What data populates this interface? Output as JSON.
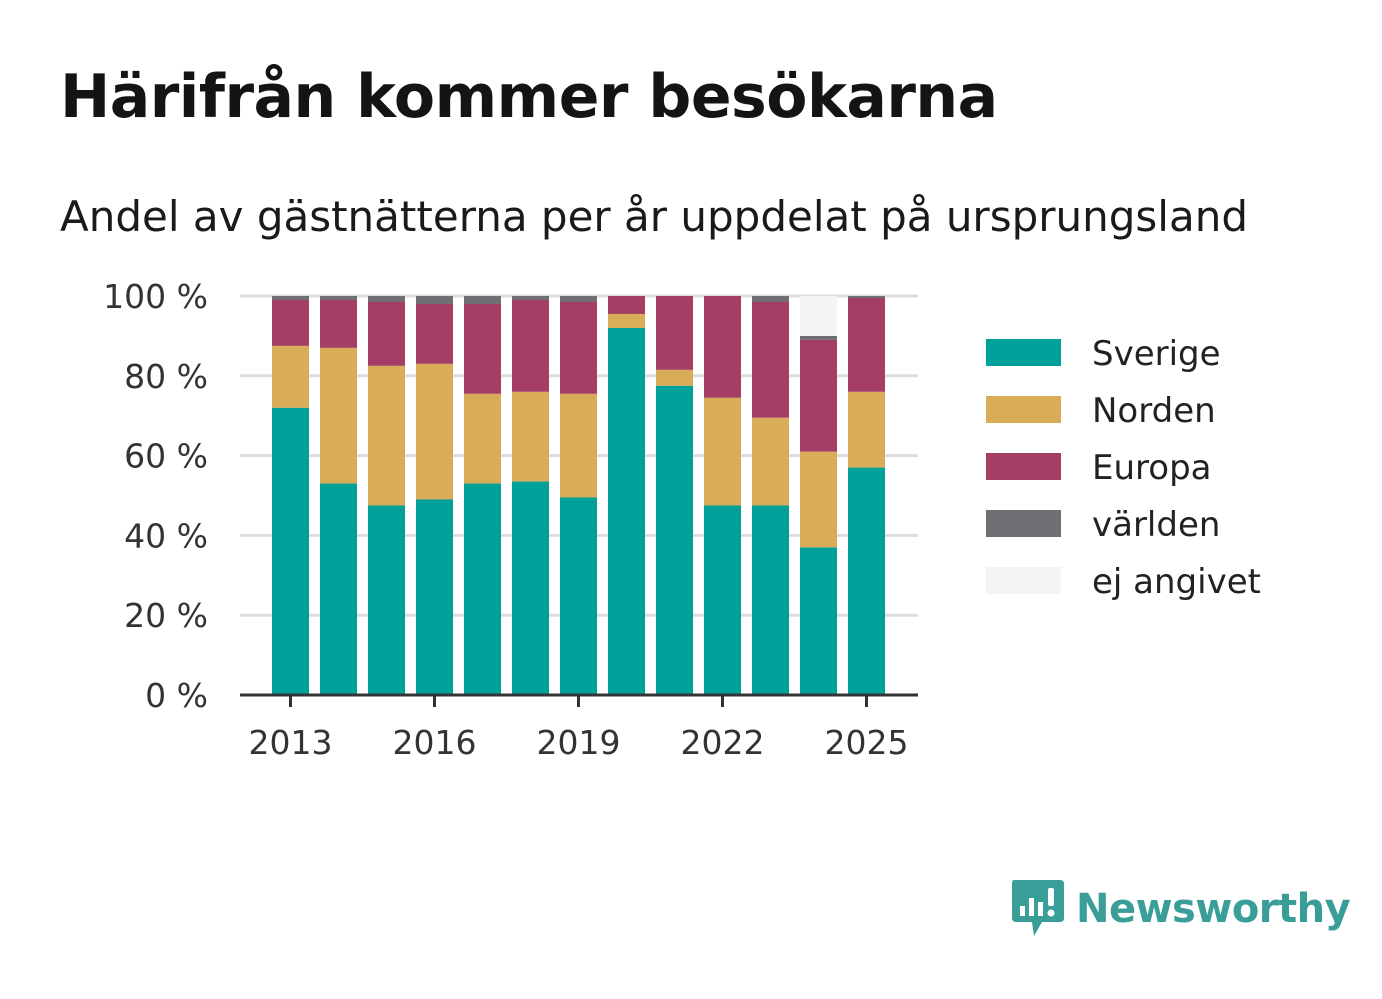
{
  "title": "Härifrån kommer besökarna",
  "subtitle": "Andel av gästnätterna per år uppdelat på ursprungsland",
  "brand": {
    "name": "Newsworthy",
    "logo_icon": "newsworthy-chart-bubble-icon",
    "color": "#3a9e98"
  },
  "chart_data": {
    "type": "bar",
    "stacked": true,
    "categories": [
      "2013",
      "2014",
      "2015",
      "2016",
      "2017",
      "2018",
      "2019",
      "2020",
      "2021",
      "2022",
      "2023",
      "2024",
      "2025"
    ],
    "series": [
      {
        "name": "Sverige",
        "color": "#00a19a",
        "values": [
          72,
          53,
          47.5,
          49,
          53,
          53.5,
          49.5,
          92,
          77.5,
          47.5,
          47.5,
          37,
          57
        ]
      },
      {
        "name": "Norden",
        "color": "#d9ac57",
        "values": [
          15.5,
          34,
          35,
          34,
          22.5,
          22.5,
          26,
          3.5,
          4,
          27,
          22,
          24,
          19
        ]
      },
      {
        "name": "Europa",
        "color": "#a43e66",
        "values": [
          11.5,
          12,
          16,
          15,
          22.5,
          23,
          23,
          4.5,
          18.5,
          25.5,
          29,
          28,
          23.5
        ]
      },
      {
        "name": "världen",
        "color": "#6e6e73",
        "values": [
          1,
          1,
          1.5,
          2,
          2,
          1,
          1.5,
          0,
          0,
          0,
          1.5,
          1,
          0.5
        ]
      },
      {
        "name": "ej angivet",
        "color": "#f4f4f2",
        "values": [
          0,
          0,
          0,
          0,
          0,
          0,
          0,
          0,
          0,
          0,
          0,
          10,
          0
        ]
      }
    ],
    "x_tick_labels": [
      "2013",
      "2016",
      "2019",
      "2022",
      "2025"
    ],
    "y_tick_labels": [
      "0 %",
      "20 %",
      "40 %",
      "60 %",
      "80 %",
      "100 %"
    ],
    "ylim": [
      0,
      100
    ],
    "grid": true,
    "legend_position": "right"
  }
}
